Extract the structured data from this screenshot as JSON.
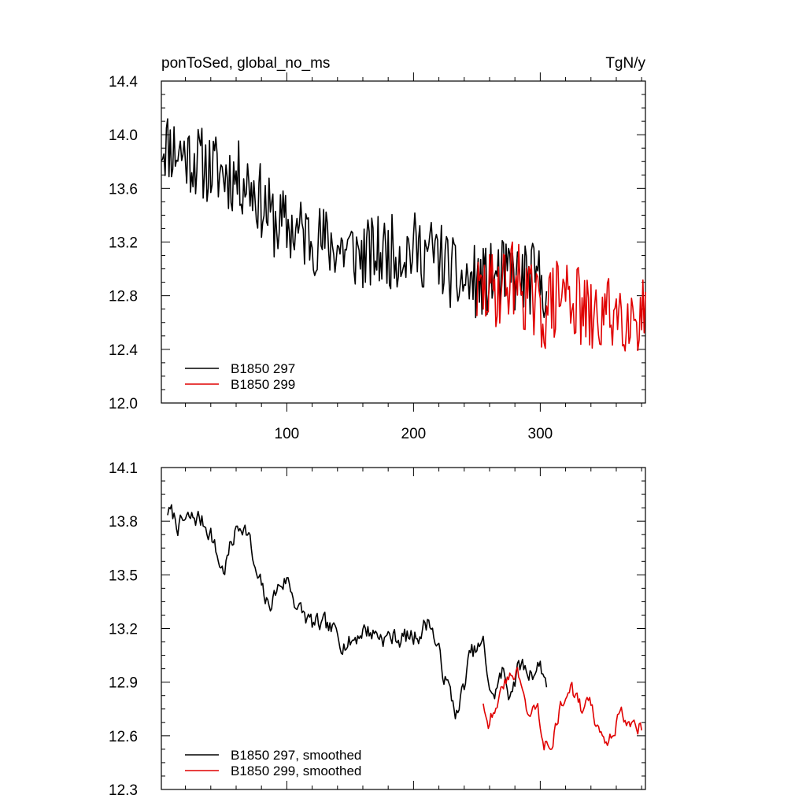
{
  "colors": {
    "run_297": "#000000",
    "run_299": "#e00000",
    "axes": "#000000"
  },
  "chart_data": [
    {
      "type": "line",
      "title_left": "ponToSed, global_no_ms",
      "title_right": "TgN/y",
      "xlim": [
        1,
        383
      ],
      "ylim": [
        12.0,
        14.4
      ],
      "x_ticks": [
        100,
        200,
        300
      ],
      "x_tick_labels": [
        "100",
        "200",
        "300"
      ],
      "y_ticks": [
        12.0,
        12.4,
        12.8,
        13.2,
        13.6,
        14.0,
        14.4
      ],
      "y_tick_labels": [
        "12.0",
        "12.4",
        "12.8",
        "13.2",
        "13.6",
        "14.0",
        "14.4"
      ],
      "legend": {
        "position": "bottom-left",
        "entries": [
          "B1850 297",
          "B1850 299"
        ]
      },
      "series": [
        {
          "name": "B1850 297",
          "color": "#000000",
          "x_start": 1,
          "x_end": 305,
          "noise": 0.28,
          "trend": [
            [
              1,
              13.95
            ],
            [
              40,
              13.75
            ],
            [
              70,
              13.65
            ],
            [
              90,
              13.35
            ],
            [
              130,
              13.2
            ],
            [
              160,
              13.1
            ],
            [
              200,
              13.15
            ],
            [
              220,
              13.1
            ],
            [
              235,
              12.9
            ],
            [
              255,
              12.9
            ],
            [
              275,
              12.95
            ],
            [
              305,
              12.9
            ]
          ]
        },
        {
          "name": "B1850 299",
          "color": "#e00000",
          "x_start": 250,
          "x_end": 383,
          "noise": 0.3,
          "trend": [
            [
              250,
              12.8
            ],
            [
              265,
              12.85
            ],
            [
              280,
              12.95
            ],
            [
              300,
              12.65
            ],
            [
              320,
              12.85
            ],
            [
              340,
              12.6
            ],
            [
              360,
              12.7
            ],
            [
              383,
              12.65
            ]
          ]
        }
      ]
    },
    {
      "type": "line",
      "xlim": [
        1,
        383
      ],
      "ylim": [
        12.3,
        14.1
      ],
      "x_ticks": [
        100,
        200,
        300
      ],
      "y_ticks": [
        12.3,
        12.6,
        12.9,
        13.2,
        13.5,
        13.8,
        14.1
      ],
      "y_tick_labels": [
        "12.3",
        "12.6",
        "12.9",
        "13.2",
        "13.5",
        "13.8",
        "14.1"
      ],
      "legend": {
        "position": "bottom-left",
        "entries": [
          "B1850 297, smoothed",
          "B1850 299, smoothed"
        ]
      },
      "series": [
        {
          "name": "B1850 297, smoothed",
          "color": "#000000",
          "x_start": 6,
          "x_end": 305,
          "noise": 0.05,
          "trend": [
            [
              6,
              13.86
            ],
            [
              15,
              13.78
            ],
            [
              30,
              13.82
            ],
            [
              40,
              13.75
            ],
            [
              45,
              13.6
            ],
            [
              50,
              13.52
            ],
            [
              60,
              13.75
            ],
            [
              65,
              13.8
            ],
            [
              70,
              13.72
            ],
            [
              75,
              13.5
            ],
            [
              80,
              13.42
            ],
            [
              85,
              13.32
            ],
            [
              95,
              13.45
            ],
            [
              100,
              13.48
            ],
            [
              110,
              13.3
            ],
            [
              120,
              13.22
            ],
            [
              130,
              13.2
            ],
            [
              150,
              13.12
            ],
            [
              160,
              13.2
            ],
            [
              180,
              13.15
            ],
            [
              200,
              13.15
            ],
            [
              213,
              13.25
            ],
            [
              220,
              13.05
            ],
            [
              230,
              12.8
            ],
            [
              235,
              12.72
            ],
            [
              245,
              13.05
            ],
            [
              255,
              13.1
            ],
            [
              262,
              12.8
            ],
            [
              270,
              12.95
            ],
            [
              275,
              12.85
            ],
            [
              285,
              13.0
            ],
            [
              290,
              12.95
            ],
            [
              300,
              13.0
            ],
            [
              305,
              12.9
            ]
          ]
        },
        {
          "name": "B1850 299, smoothed",
          "color": "#e00000",
          "x_start": 255,
          "x_end": 380,
          "noise": 0.04,
          "trend": [
            [
              255,
              12.8
            ],
            [
              260,
              12.68
            ],
            [
              265,
              12.8
            ],
            [
              270,
              12.85
            ],
            [
              277,
              12.95
            ],
            [
              282,
              12.98
            ],
            [
              287,
              12.8
            ],
            [
              292,
              12.72
            ],
            [
              298,
              12.75
            ],
            [
              303,
              12.58
            ],
            [
              310,
              12.6
            ],
            [
              318,
              12.8
            ],
            [
              325,
              12.85
            ],
            [
              332,
              12.75
            ],
            [
              340,
              12.78
            ],
            [
              345,
              12.62
            ],
            [
              350,
              12.55
            ],
            [
              355,
              12.62
            ],
            [
              363,
              12.72
            ],
            [
              370,
              12.7
            ],
            [
              376,
              12.66
            ],
            [
              380,
              12.66
            ]
          ]
        }
      ]
    }
  ]
}
